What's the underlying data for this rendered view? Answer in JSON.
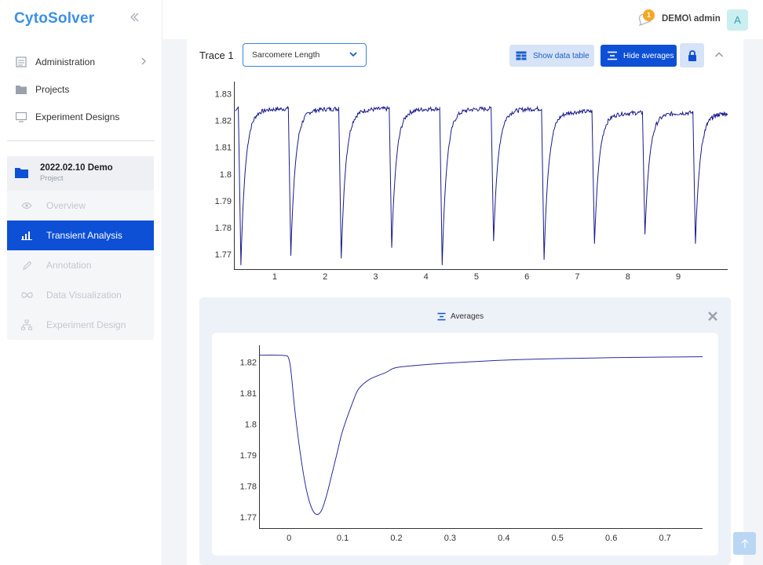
{
  "app": {
    "brand": "CytoSolver"
  },
  "sidebar": {
    "items": [
      {
        "label": "Administration",
        "icon": "admin-icon"
      },
      {
        "label": "Projects",
        "icon": "folder-icon"
      },
      {
        "label": "Experiment Designs",
        "icon": "monitor-icon"
      }
    ],
    "project": {
      "title": "2022.02.10 Demo",
      "subtitle": "Project",
      "items": [
        {
          "label": "Overview",
          "icon": "eye-icon"
        },
        {
          "label": "Transient Analysis",
          "icon": "bar-chart-icon",
          "active": true
        },
        {
          "label": "Annotation",
          "icon": "pencil-icon"
        },
        {
          "label": "Data Visualization",
          "icon": "infinity-icon"
        },
        {
          "label": "Experiment Design",
          "icon": "sitemap-icon"
        }
      ]
    }
  },
  "header": {
    "notification_count": "1",
    "user": "DEMO\\ admin",
    "avatar_letter": "A"
  },
  "trace": {
    "label": "Trace 1",
    "select_value": "Sarcomere Length",
    "show_table_label": "Show data table",
    "hide_averages_label": "Hide averages"
  },
  "averages": {
    "title": "Averages"
  },
  "chart_data": [
    {
      "type": "line",
      "title": "",
      "x_ticks": [
        "1",
        "2",
        "3",
        "4",
        "5",
        "6",
        "7",
        "8",
        "9"
      ],
      "y_ticks": [
        "1.77",
        "1.78",
        "1.79",
        "1.8",
        "1.81",
        "1.82",
        "1.83"
      ],
      "xlim": [
        0.2,
        9.98
      ],
      "ylim": [
        1.7645,
        1.8345
      ],
      "transients": [
        {
          "start": 0.28,
          "min": 1.766,
          "peak": 1.8245
        },
        {
          "start": 1.27,
          "min": 1.7695,
          "peak": 1.8245
        },
        {
          "start": 2.27,
          "min": 1.7685,
          "peak": 1.8245
        },
        {
          "start": 3.27,
          "min": 1.7725,
          "peak": 1.8245
        },
        {
          "start": 4.27,
          "min": 1.766,
          "peak": 1.8245
        },
        {
          "start": 5.29,
          "min": 1.775,
          "peak": 1.8245
        },
        {
          "start": 6.29,
          "min": 1.768,
          "peak": 1.8235
        },
        {
          "start": 7.29,
          "min": 1.774,
          "peak": 1.823
        },
        {
          "start": 8.29,
          "min": 1.7775,
          "peak": 1.823
        },
        {
          "start": 9.29,
          "min": 1.774,
          "peak": 1.823
        }
      ]
    },
    {
      "type": "line",
      "title": "",
      "x_ticks": [
        "0",
        "0.1",
        "0.2",
        "0.3",
        "0.4",
        "0.5",
        "0.6",
        "0.7"
      ],
      "y_ticks": [
        "1.77",
        "1.78",
        "1.79",
        "1.8",
        "1.81",
        "1.82"
      ],
      "xlim": [
        -0.055,
        0.77
      ],
      "ylim": [
        1.7665,
        1.8255
      ],
      "x": [
        -0.055,
        -0.01,
        0.0,
        0.005,
        0.01,
        0.02,
        0.03,
        0.04,
        0.05,
        0.06,
        0.07,
        0.08,
        0.09,
        0.1,
        0.12,
        0.13,
        0.15,
        0.18,
        0.2,
        0.25,
        0.3,
        0.4,
        0.5,
        0.6,
        0.7,
        0.77
      ],
      "y": [
        1.8223,
        1.8222,
        1.821,
        1.815,
        1.806,
        1.792,
        1.781,
        1.774,
        1.771,
        1.772,
        1.777,
        1.784,
        1.791,
        1.798,
        1.8077,
        1.8115,
        1.8145,
        1.8167,
        1.8183,
        1.8192,
        1.8198,
        1.8207,
        1.8212,
        1.8215,
        1.8217,
        1.8218
      ]
    }
  ]
}
